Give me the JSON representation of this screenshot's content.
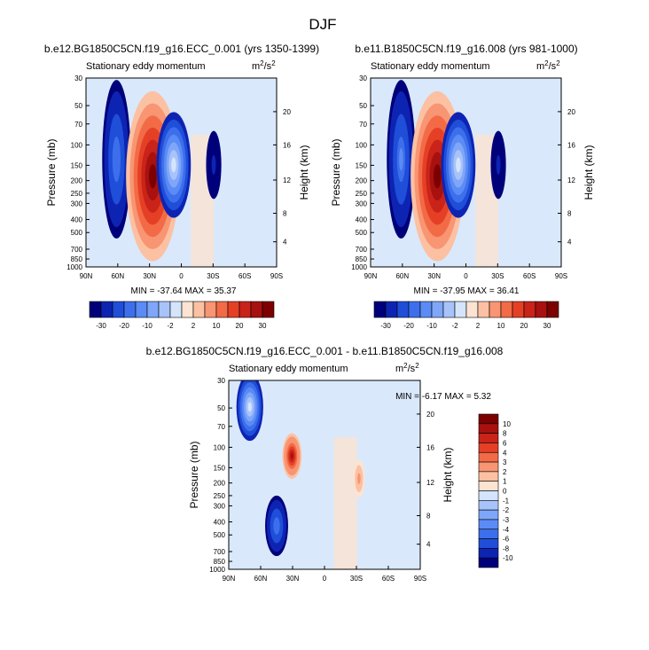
{
  "figure_title": "DJF",
  "units": {
    "base": "m",
    "sup1": "2",
    "mid": "/s",
    "sup2": "2"
  },
  "colors": {
    "neg": [
      "#00007a",
      "#0d24b3",
      "#1f4ed9",
      "#3d6fec",
      "#5b8bf5",
      "#7fa6f8",
      "#a7c3fa",
      "#d4e4fb"
    ],
    "pos": [
      "#fde3d1",
      "#fbc1a2",
      "#f89572",
      "#f36a47",
      "#e54026",
      "#c9231a",
      "#a8110f",
      "#7d0000"
    ],
    "background_field": "#dae8fb",
    "positive_wash": "#fbe2d2"
  },
  "chart_data": [
    {
      "type": "heatmap",
      "title": "b.e12.BG1850C5CN.f19_g16.ECC_0.001 (yrs 1350-1399)",
      "subtitle": "Stationary eddy momentum",
      "ylabel": "Pressure (mb)",
      "ylabel_right": "Height (km)",
      "x_ticks": [
        "90N",
        "60N",
        "30N",
        "0",
        "30S",
        "60S",
        "90S"
      ],
      "y_ticks": [
        "30",
        "50",
        "70",
        "100",
        "150",
        "200",
        "250",
        "300",
        "400",
        "500",
        "700",
        "850",
        "1000"
      ],
      "height_ticks": [
        "4",
        "8",
        "12",
        "16",
        "20"
      ],
      "minmax": "MIN = -37.64   MAX =  35.37",
      "levels": [
        "-30",
        "-20",
        "-10",
        "-2",
        "2",
        "10",
        "20",
        "30"
      ],
      "features": [
        {
          "lat": 60,
          "p": 180,
          "value": -18
        },
        {
          "lat": 28,
          "p": 210,
          "value": 35.37
        },
        {
          "lat": 12,
          "p": 150,
          "value": -37.64
        },
        {
          "lat": -10,
          "p": 160,
          "value": -6
        }
      ]
    },
    {
      "type": "heatmap",
      "title": "b.e11.B1850C5CN.f19_g16.008 (yrs 981-1000)",
      "subtitle": "Stationary eddy momentum",
      "ylabel": "Pressure (mb)",
      "ylabel_right": "Height (km)",
      "x_ticks": [
        "90N",
        "60N",
        "30N",
        "0",
        "30S",
        "60S",
        "90S"
      ],
      "y_ticks": [
        "30",
        "50",
        "70",
        "100",
        "150",
        "200",
        "250",
        "300",
        "400",
        "500",
        "700",
        "850",
        "1000"
      ],
      "height_ticks": [
        "4",
        "8",
        "12",
        "16",
        "20"
      ],
      "minmax": "MIN = -37.95   MAX =  36.41",
      "levels": [
        "-30",
        "-20",
        "-10",
        "-2",
        "2",
        "10",
        "20",
        "30"
      ],
      "features": [
        {
          "lat": 60,
          "p": 180,
          "value": -19
        },
        {
          "lat": 28,
          "p": 210,
          "value": 36.41
        },
        {
          "lat": 12,
          "p": 150,
          "value": -37.95
        },
        {
          "lat": -10,
          "p": 160,
          "value": -6
        }
      ]
    },
    {
      "type": "heatmap",
      "title": "b.e12.BG1850C5CN.f19_g16.ECC_0.001 - b.e11.B1850C5CN.f19_g16.008",
      "subtitle": "Stationary eddy momentum",
      "ylabel": "Pressure (mb)",
      "ylabel_right": "Height (km)",
      "x_ticks": [
        "90N",
        "60N",
        "30N",
        "0",
        "30S",
        "60S",
        "90S"
      ],
      "y_ticks": [
        "30",
        "50",
        "70",
        "100",
        "150",
        "200",
        "250",
        "300",
        "400",
        "500",
        "700",
        "850",
        "1000"
      ],
      "height_ticks": [
        "4",
        "8",
        "12",
        "16",
        "20"
      ],
      "minmax": "MIN =  -6.17   MAX =   5.32",
      "levels": [
        "10",
        "8",
        "6",
        "4",
        "3",
        "2",
        "1",
        "0",
        "-1",
        "-2",
        "-3",
        "-4",
        "-6",
        "-8",
        "-10"
      ],
      "features": [
        {
          "lat": 70,
          "p": 50,
          "value": -6.17
        },
        {
          "lat": 32,
          "p": 110,
          "value": 5.32
        },
        {
          "lat": 42,
          "p": 330,
          "value": -3
        },
        {
          "lat": -20,
          "p": 140,
          "value": 2
        }
      ]
    }
  ]
}
